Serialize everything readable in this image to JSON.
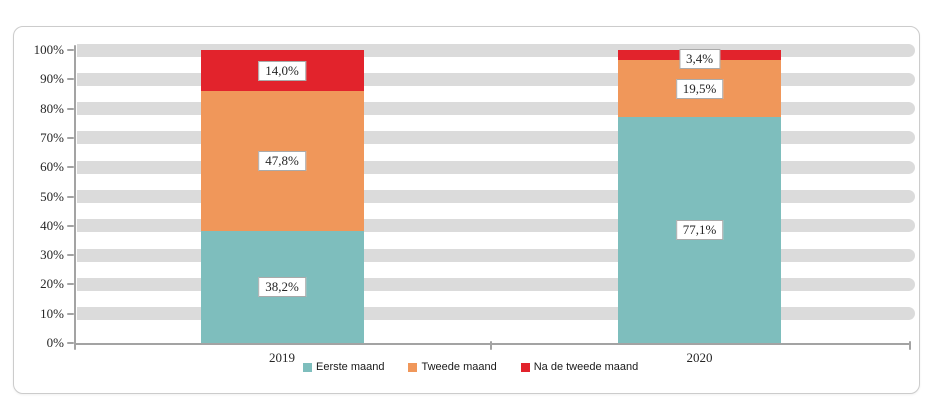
{
  "panel": {
    "background": "#ffffff",
    "border_color": "#cccccc"
  },
  "chart_data": {
    "type": "bar",
    "variant": "stacked-column-100",
    "title": "",
    "categories": [
      "2019",
      "2020"
    ],
    "series": [
      {
        "name": "Eerste maand",
        "color": "#7ebebd",
        "values": [
          38.2,
          77.1
        ],
        "data_labels": [
          "38,2%",
          "77,1%"
        ]
      },
      {
        "name": "Tweede maand",
        "color": "#f0975a",
        "values": [
          47.8,
          19.5
        ],
        "data_labels": [
          "47,8%",
          "19,5%"
        ]
      },
      {
        "name": "Na de tweede maand",
        "color": "#e2232c",
        "values": [
          14.0,
          3.4
        ],
        "data_labels": [
          "14,0%",
          "3,4%"
        ]
      }
    ],
    "ylim": [
      0,
      100
    ],
    "y_tick_step": 10,
    "y_tick_labels": [
      "0%",
      "10%",
      "20%",
      "30%",
      "40%",
      "50%",
      "60%",
      "70%",
      "80%",
      "90%",
      "100%"
    ],
    "grid": "horizontal gray bands centered on each 10% line",
    "gridband_color": "#dbdbdb",
    "axis_color": "#a3a3a3",
    "legend_position": "bottom",
    "label_box": {
      "background": "#ffffff",
      "border_color": "#aaaaaa",
      "text_color": "#262626"
    }
  }
}
